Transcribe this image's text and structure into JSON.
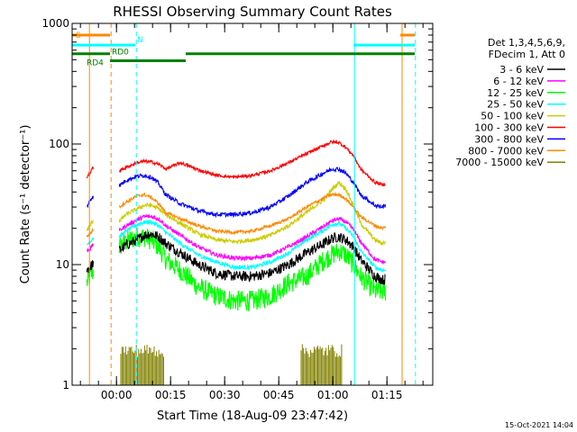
{
  "chart_data": {
    "type": "line",
    "title": "RHESSI Observing Summary Count Rates",
    "xlabel": "Start Time (18-Aug-09 23:47:42)",
    "ylabel": "Count Rate (s⁻¹ detector⁻¹)",
    "x_unit": "minutes from 18-Aug-09 23:47:42",
    "xlim": [
      0,
      100
    ],
    "ylim": [
      1,
      1000
    ],
    "yscale": "log",
    "x_ticks": [
      {
        "value": 12.3,
        "label": "00:00"
      },
      {
        "value": 27.3,
        "label": "00:15"
      },
      {
        "value": 42.3,
        "label": "00:30"
      },
      {
        "value": 57.3,
        "label": "00:45"
      },
      {
        "value": 72.3,
        "label": "01:00"
      },
      {
        "value": 87.3,
        "label": "01:15"
      }
    ],
    "y_ticks": [
      {
        "value": 1,
        "label": "1"
      },
      {
        "value": 10,
        "label": "10"
      },
      {
        "value": 100,
        "label": "100"
      },
      {
        "value": 1000,
        "label": "1000"
      }
    ],
    "legend_header": [
      "Det 1,3,4,5,6,9,",
      "FDecim 1, Att 0"
    ],
    "legend_position": "right",
    "timestamp": "15-Oct-2021 14:04",
    "x": [
      0,
      2,
      4,
      5,
      6,
      12,
      13,
      15,
      18,
      20,
      22,
      24,
      26,
      30,
      35,
      40,
      45,
      50,
      55,
      60,
      65,
      70,
      72,
      74,
      76,
      78,
      80,
      84,
      86,
      87,
      88,
      90
    ],
    "series": [
      {
        "name": "3 - 6 keV",
        "color": "#000000",
        "noise": 0.1,
        "values": [
          null,
          null,
          9,
          9.5,
          10.5,
          null,
          13,
          14.5,
          16,
          17.5,
          18,
          17,
          15,
          12.5,
          10,
          8.5,
          8,
          8,
          8.5,
          10,
          12.5,
          15,
          16.5,
          17,
          16,
          14,
          11,
          8,
          7.5,
          7.5,
          null,
          null
        ]
      },
      {
        "name": "6 - 12 keV",
        "color": "#ff00ff",
        "noise": 0.04,
        "values": [
          null,
          null,
          13,
          13.5,
          15,
          null,
          19,
          21,
          23.5,
          25,
          25,
          24,
          21,
          17.5,
          14,
          12,
          11.3,
          11.3,
          12,
          14,
          17,
          21,
          23,
          24,
          22.5,
          19.5,
          15.5,
          11,
          10.5,
          10.5,
          null,
          null
        ]
      },
      {
        "name": "12 - 25 keV",
        "color": "#00ff00",
        "noise": 0.2,
        "values": [
          null,
          null,
          7,
          8,
          9,
          null,
          14,
          15.5,
          17,
          17,
          16,
          14,
          11,
          9,
          6.5,
          5.5,
          5,
          5,
          5.5,
          7,
          8,
          11,
          12,
          13,
          12,
          10,
          8,
          6,
          6,
          6,
          null,
          null
        ]
      },
      {
        "name": "25 - 50 keV",
        "color": "#00ffff",
        "noise": 0.04,
        "values": [
          null,
          null,
          14.5,
          15.5,
          17,
          null,
          17,
          19,
          21.5,
          22.5,
          22.5,
          21,
          18.5,
          15,
          12,
          10.5,
          9.5,
          9.5,
          10.5,
          12.5,
          16,
          19.5,
          21.5,
          22,
          20,
          17,
          13,
          9.5,
          9,
          9,
          null,
          null
        ]
      },
      {
        "name": "50 - 100 keV",
        "color": "#cccc00",
        "noise": 0.04,
        "values": [
          null,
          null,
          19,
          21,
          24,
          null,
          23,
          26,
          29,
          31,
          31,
          29,
          26,
          22,
          18,
          16,
          15.5,
          16,
          17.5,
          21,
          27,
          35,
          42,
          48,
          42,
          31,
          22,
          16,
          15,
          15.5,
          null,
          null
        ]
      },
      {
        "name": "100 - 300 keV",
        "color": "#ff0000",
        "noise": 0.03,
        "values": [
          null,
          null,
          53,
          58,
          65,
          null,
          60,
          64,
          70,
          72,
          71,
          68,
          62,
          70,
          61,
          55,
          53,
          55,
          60,
          70,
          83,
          98,
          104,
          103,
          93,
          80,
          62,
          48,
          46,
          47,
          null,
          null
        ]
      },
      {
        "name": "300 - 800 keV",
        "color": "#0000ff",
        "noise": 0.04,
        "values": [
          null,
          null,
          30,
          34,
          38,
          null,
          45,
          50,
          54,
          55,
          53,
          47,
          38,
          32,
          28,
          26,
          26,
          27,
          30,
          37,
          48,
          58,
          62,
          62,
          57,
          48,
          38,
          31,
          30,
          31,
          null,
          null
        ]
      },
      {
        "name": "800 - 7000 keV",
        "color": "#ff8800",
        "noise": 0.03,
        "values": [
          null,
          null,
          17,
          18,
          20,
          null,
          30,
          33,
          37,
          38,
          36,
          32,
          27,
          24,
          21,
          19,
          18.5,
          19,
          21,
          24,
          30,
          36,
          38,
          38,
          35,
          30,
          25,
          21,
          20,
          20.5,
          null,
          null
        ]
      },
      {
        "name": "7000 - 15000 keV",
        "color": "#808000",
        "noise": 0,
        "values": [
          null,
          null,
          null,
          null,
          null,
          null,
          null,
          null,
          null,
          null,
          null,
          null,
          null,
          null,
          null,
          null,
          null,
          null,
          null,
          null,
          null,
          null,
          null,
          null,
          null,
          null,
          null,
          null,
          null,
          null,
          null,
          null
        ]
      }
    ],
    "bursts": {
      "series": "7000 - 15000 keV",
      "level": 2.0,
      "ranges": [
        [
          13.5,
          25.5
        ],
        [
          63.5,
          74.8
        ]
      ]
    },
    "flags": [
      {
        "label": "S",
        "color": "#ff8800",
        "y": 800,
        "x_start": 0,
        "x_end": 10.5
      },
      {
        "label": "",
        "color": "#ff8800",
        "y": 800,
        "x_start": 91,
        "x_end": 95
      },
      {
        "label": "N",
        "color": "#00ffff",
        "y": 660,
        "x_start": 0,
        "x_end": 17.5
      },
      {
        "label": "",
        "color": "#00ffff",
        "y": 660,
        "x_start": 78,
        "x_end": 95
      },
      {
        "label": "RD0",
        "color": "#008000",
        "y": 560,
        "x_start": 0,
        "x_end": 10.5
      },
      {
        "label": "",
        "color": "#008000",
        "y": 560,
        "x_start": 31.5,
        "x_end": 95
      },
      {
        "label": "RD4",
        "color": "#008000",
        "y": 490,
        "x_start": 10.5,
        "x_end": 31.5
      }
    ],
    "vlines": [
      {
        "x": 0,
        "color": "#00ffff",
        "style": "solid"
      },
      {
        "x": 4.8,
        "color": "#ff8800",
        "style": "solid"
      },
      {
        "x": 10.8,
        "color": "#ff8800",
        "style": "dashed"
      },
      {
        "x": 17.8,
        "color": "#00ffff",
        "style": "dashed"
      },
      {
        "x": 78.3,
        "color": "#00ffff",
        "style": "solid"
      },
      {
        "x": 91.5,
        "color": "#ff8800",
        "style": "solid"
      },
      {
        "x": 95.2,
        "color": "#00ffff",
        "style": "dashed"
      }
    ]
  }
}
